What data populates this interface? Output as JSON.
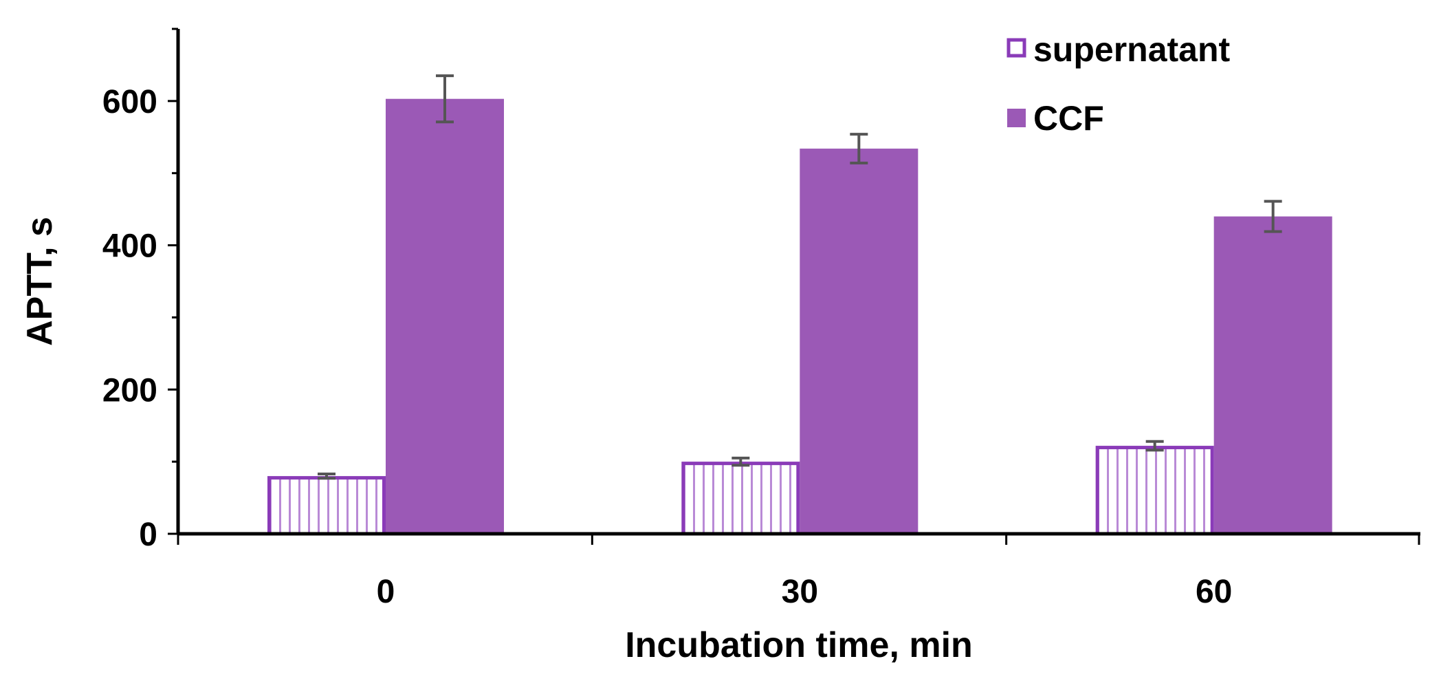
{
  "chart_data": {
    "type": "bar",
    "title": "",
    "xlabel": "Incubation time, min",
    "ylabel": "APTT, s",
    "categories": [
      "0",
      "30",
      "60"
    ],
    "ylim": [
      0,
      700
    ],
    "yticks": [
      0,
      200,
      400,
      600
    ],
    "y_tick_labels": [
      "0",
      "200",
      "400",
      "600"
    ],
    "grid": false,
    "legend_position": "top-right",
    "series": [
      {
        "name": "supernatant",
        "values": [
          80,
          100,
          122
        ],
        "errors": [
          3,
          5,
          6
        ],
        "style": "hatched-outline",
        "color": "#8a3bb8"
      },
      {
        "name": "CCF",
        "values": [
          603,
          534,
          440
        ],
        "errors": [
          32,
          20,
          21
        ],
        "style": "solid",
        "color": "#9b59b6"
      }
    ],
    "error_bar_color": "#555555"
  }
}
